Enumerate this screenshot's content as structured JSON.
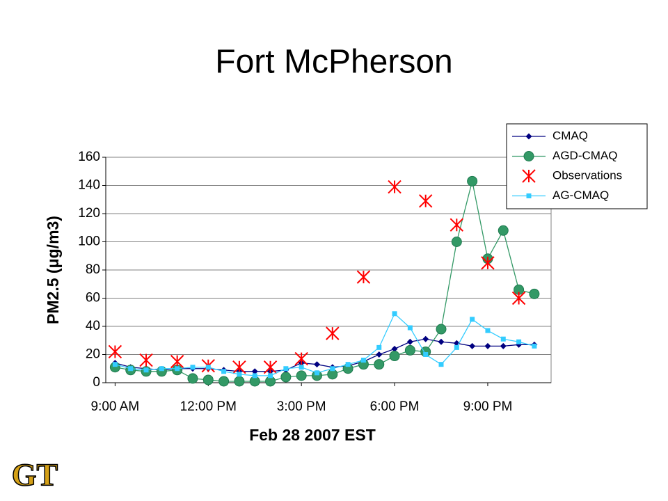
{
  "chart_data": {
    "type": "line",
    "title": "Fort McPherson",
    "x_label": "Feb 28 2007 EST",
    "y_label": "PM2.5 (μg/m3)",
    "logo": "GT",
    "x": [
      9,
      9.5,
      10,
      10.5,
      11,
      11.5,
      12,
      12.5,
      13,
      13.5,
      14,
      14.5,
      15,
      15.5,
      16,
      16.5,
      17,
      17.5,
      18,
      18.5,
      19,
      19.5,
      20,
      20.5,
      21,
      21.5,
      22,
      22.5
    ],
    "xlim": [
      8.7,
      23.04
    ],
    "xticks": [
      {
        "value": 9,
        "label": "9:00 AM"
      },
      {
        "value": 12,
        "label": "12:00 PM"
      },
      {
        "value": 15,
        "label": "3:00 PM"
      },
      {
        "value": 18,
        "label": "6:00 PM"
      },
      {
        "value": 21,
        "label": "9:00 PM"
      }
    ],
    "ylim": [
      0,
      160
    ],
    "yticks": [
      0,
      20,
      40,
      60,
      80,
      100,
      120,
      140,
      160
    ],
    "grid": true,
    "legend": "top-right",
    "series": [
      {
        "name": "CMAQ",
        "color": "#000080",
        "marker": "diamond",
        "line": true,
        "values": [
          14,
          11,
          10,
          9,
          10,
          10,
          10,
          9,
          8,
          8,
          8,
          9,
          14,
          13,
          11,
          12,
          15,
          20,
          24,
          29,
          31,
          29,
          28,
          26,
          26,
          26,
          27,
          27
        ]
      },
      {
        "name": "AGD-CMAQ",
        "color": "#339966",
        "marker": "circle",
        "line": true,
        "values": [
          11,
          9,
          8,
          8,
          9,
          3,
          2,
          1,
          1,
          1,
          1,
          4,
          5,
          5,
          6,
          10,
          13,
          13,
          19,
          23,
          22,
          38,
          100,
          143,
          88,
          108,
          66,
          63
        ]
      },
      {
        "name": "Observations",
        "color": "#ff0000",
        "marker": "x",
        "line": false,
        "values": [
          22,
          null,
          16,
          null,
          15,
          null,
          12,
          null,
          11,
          null,
          11,
          null,
          17,
          null,
          35,
          null,
          75,
          null,
          139,
          null,
          129,
          null,
          112,
          null,
          85,
          null,
          60,
          null
        ]
      },
      {
        "name": "AG-CMAQ",
        "color": "#33ccff",
        "marker": "square",
        "line": true,
        "values": [
          13,
          10,
          9,
          10,
          10,
          11,
          11,
          8,
          6,
          5,
          5,
          10,
          11,
          7,
          10,
          13,
          16,
          25,
          49,
          39,
          20,
          13,
          25,
          45,
          37,
          31,
          29,
          26
        ]
      }
    ]
  }
}
